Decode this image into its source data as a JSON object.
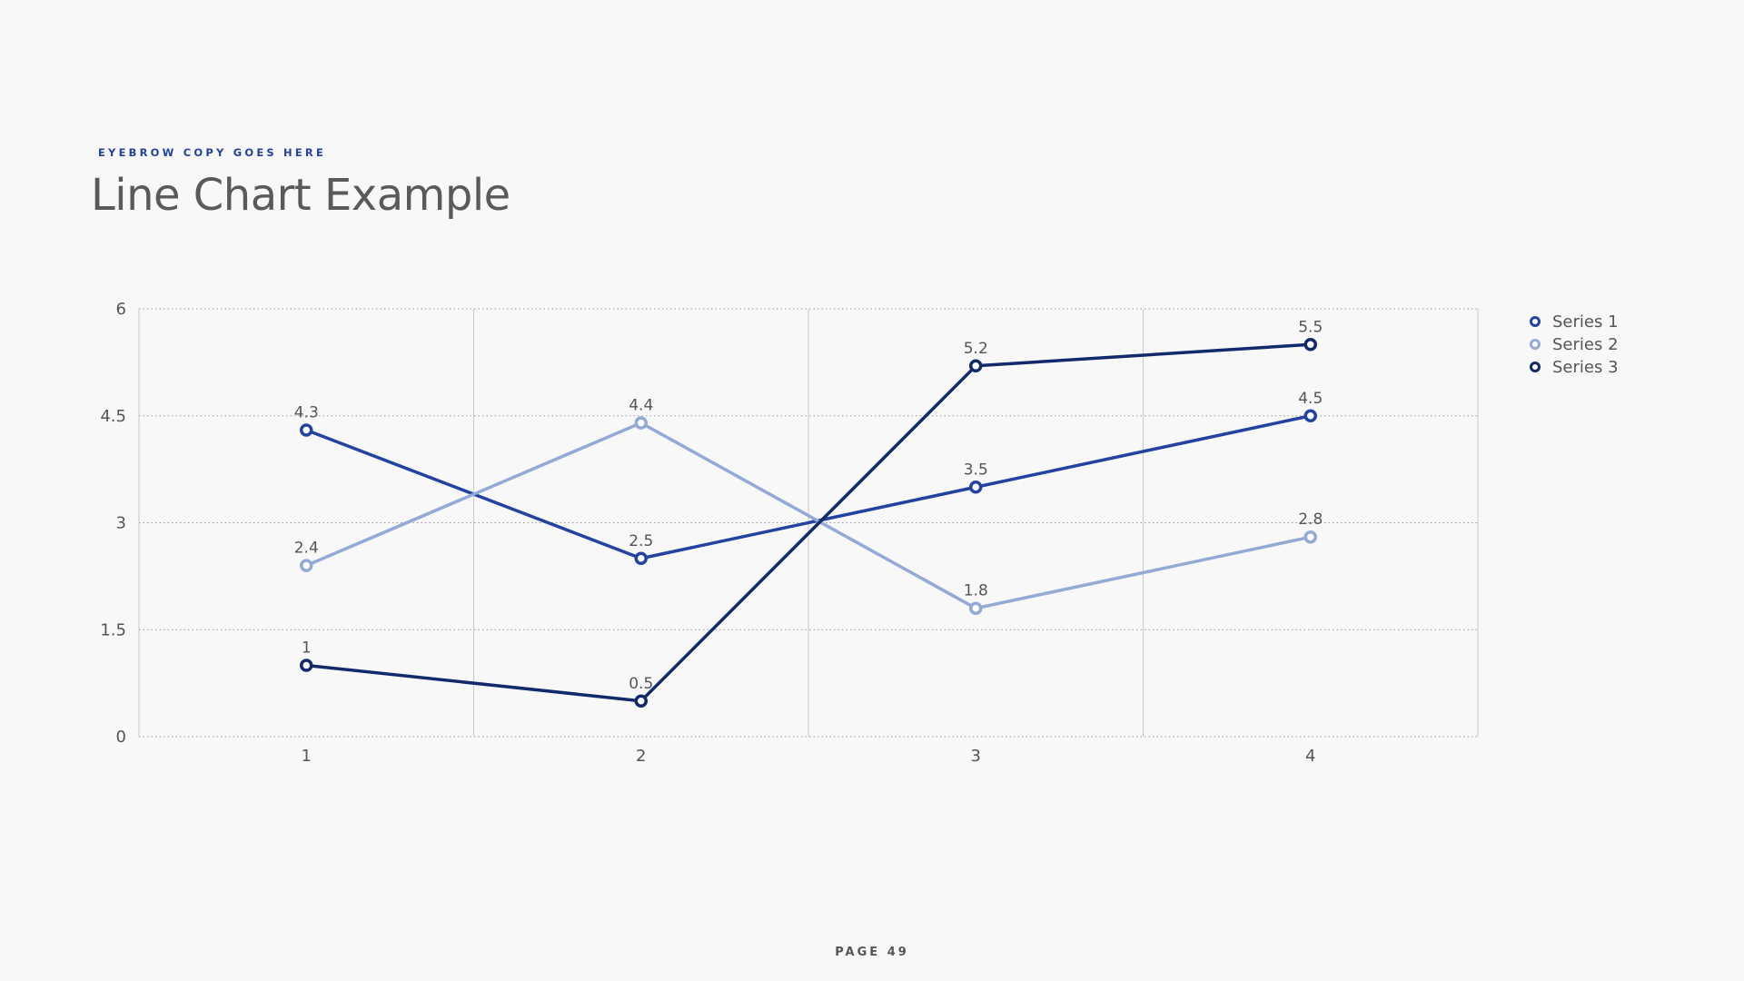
{
  "header": {
    "eyebrow": "EYEBROW COPY GOES HERE",
    "title": "Line Chart Example"
  },
  "footer": {
    "page_label": "PAGE",
    "page_number": "49"
  },
  "chart_data": {
    "type": "line",
    "categories": [
      "1",
      "2",
      "3",
      "4"
    ],
    "x": [
      1,
      2,
      3,
      4
    ],
    "ylim": [
      0,
      6
    ],
    "yticks": [
      0,
      1.5,
      3,
      4.5,
      6
    ],
    "ytick_labels": [
      "0",
      "1.5",
      "3",
      "4.5",
      "6"
    ],
    "grid": true,
    "legend_position": "top-right",
    "data_labels": true,
    "series": [
      {
        "name": "Series 1",
        "values": [
          4.3,
          2.5,
          3.5,
          4.5
        ],
        "labels": [
          "4.3",
          "2.5",
          "3.5",
          "4.5"
        ],
        "color": "#2342a2"
      },
      {
        "name": "Series 2",
        "values": [
          2.4,
          4.4,
          1.8,
          2.8
        ],
        "labels": [
          "2.4",
          "4.4",
          "1.8",
          "2.8"
        ],
        "color": "#93a9d6"
      },
      {
        "name": "Series 3",
        "values": [
          1,
          0.5,
          5.2,
          5.5
        ],
        "labels": [
          "1",
          "0.5",
          "5.2",
          "5.5"
        ],
        "color": "#122a6b"
      }
    ]
  }
}
